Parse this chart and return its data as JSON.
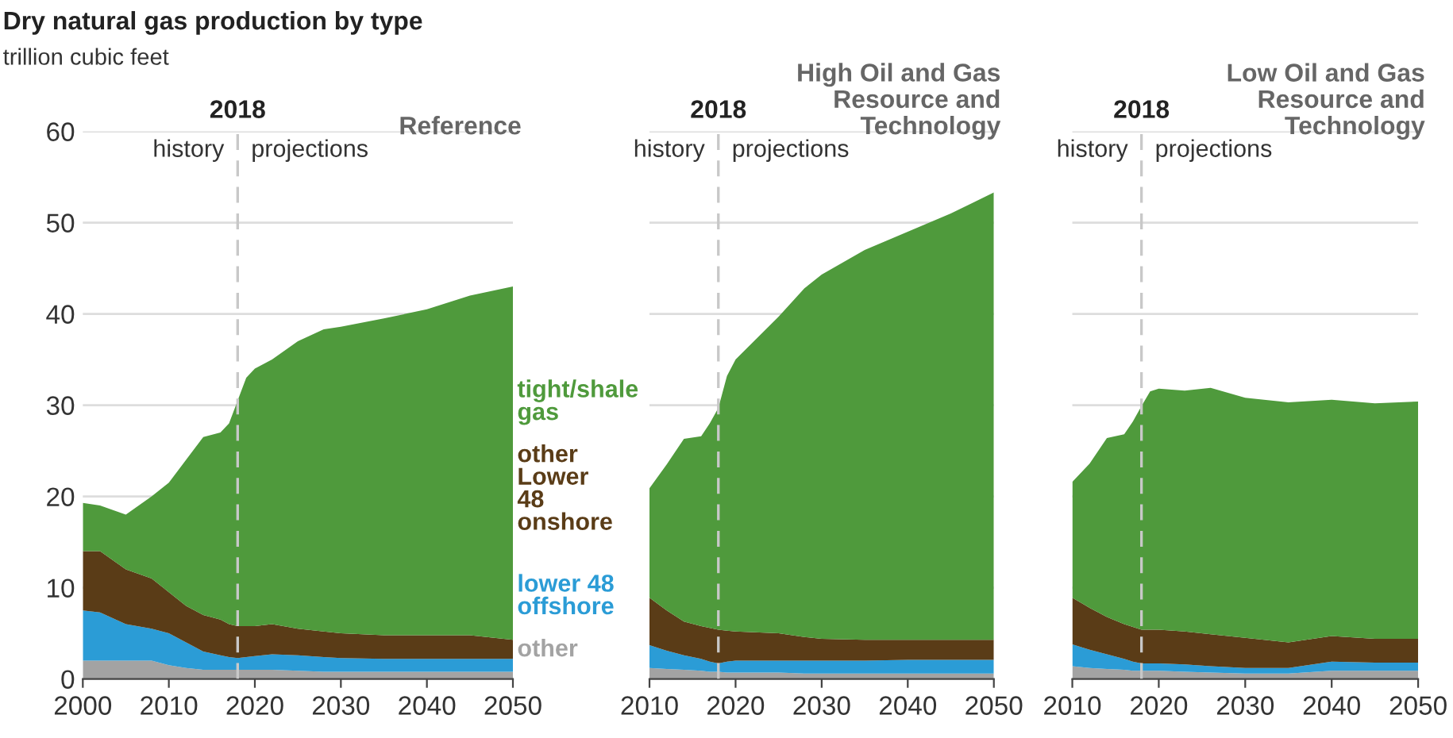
{
  "chart_data": [
    {
      "type": "area",
      "stacked": true,
      "title": "Dry natural gas production by type",
      "ylabel": "trillion cubic feet",
      "subtitle": "Reference",
      "x": [
        2000,
        2002,
        2005,
        2008,
        2010,
        2012,
        2014,
        2016,
        2017,
        2018,
        2019,
        2020,
        2022,
        2025,
        2028,
        2030,
        2035,
        2040,
        2045,
        2050
      ],
      "series": [
        {
          "name": "other",
          "color": "#a3a3a3",
          "values": [
            2.0,
            2.0,
            2.0,
            2.0,
            1.5,
            1.2,
            1.0,
            1.0,
            1.0,
            1.0,
            1.0,
            1.0,
            1.0,
            0.9,
            0.8,
            0.8,
            0.8,
            0.8,
            0.8,
            0.8
          ]
        },
        {
          "name": "lower 48\noffshore",
          "color": "#2b9cd6",
          "values": [
            5.5,
            5.3,
            4.0,
            3.5,
            3.5,
            2.8,
            2.0,
            1.6,
            1.4,
            1.3,
            1.4,
            1.5,
            1.7,
            1.7,
            1.6,
            1.5,
            1.4,
            1.4,
            1.4,
            1.4
          ]
        },
        {
          "name": "other\nLower\n48\nonshore",
          "color": "#5a3c17",
          "values": [
            6.5,
            6.7,
            6.0,
            5.5,
            4.5,
            4.0,
            4.0,
            3.9,
            3.6,
            3.5,
            3.4,
            3.3,
            3.3,
            2.9,
            2.8,
            2.7,
            2.6,
            2.6,
            2.6,
            2.1
          ]
        },
        {
          "name": "tight/shale\ngas",
          "color": "#4f9a3c",
          "values": [
            5.3,
            5.0,
            6.0,
            9.0,
            12.0,
            16.0,
            19.5,
            20.5,
            22.0,
            24.7,
            27.2,
            28.2,
            29.0,
            31.5,
            33.1,
            33.6,
            34.7,
            35.7,
            37.2,
            38.7
          ]
        }
      ],
      "xlim": [
        2000,
        2050
      ],
      "xticks": [
        2000,
        2010,
        2020,
        2030,
        2040,
        2050
      ],
      "ylim": [
        0,
        60
      ],
      "yticks": [
        0,
        10,
        20,
        30,
        40,
        50,
        60
      ],
      "grid": "y",
      "ref_lines": [
        {
          "axis": "x",
          "value": 2018,
          "label": "2018",
          "color": "#c8c8c8",
          "line_style": "dashed"
        }
      ],
      "annotations": [
        "history",
        "projections"
      ]
    },
    {
      "type": "area",
      "stacked": true,
      "subtitle": "High Oil and Gas\nResource and\nTechnology",
      "x": [
        2010,
        2012,
        2014,
        2016,
        2017,
        2018,
        2019,
        2020,
        2025,
        2028,
        2030,
        2035,
        2040,
        2045,
        2050
      ],
      "series": [
        {
          "color": "#a3a3a3",
          "values": [
            1.2,
            1.1,
            1.0,
            0.9,
            0.8,
            0.8,
            0.7,
            0.7,
            0.7,
            0.6,
            0.6,
            0.6,
            0.6,
            0.6,
            0.6
          ]
        },
        {
          "color": "#2b9cd6",
          "values": [
            2.5,
            2.0,
            1.6,
            1.3,
            1.1,
            0.9,
            1.2,
            1.3,
            1.3,
            1.4,
            1.4,
            1.4,
            1.5,
            1.5,
            1.5
          ]
        },
        {
          "color": "#5a3c17",
          "values": [
            5.2,
            4.4,
            3.7,
            3.6,
            3.7,
            3.7,
            3.4,
            3.2,
            3.0,
            2.6,
            2.4,
            2.3,
            2.2,
            2.2,
            2.2
          ]
        },
        {
          "color": "#4f9a3c",
          "values": [
            12.0,
            16.0,
            20.0,
            20.8,
            22.4,
            24.3,
            27.9,
            29.8,
            34.7,
            38.2,
            39.9,
            42.7,
            44.7,
            46.7,
            49.0
          ]
        }
      ],
      "xlim": [
        2010,
        2050
      ],
      "xticks": [
        2010,
        2020,
        2030,
        2040,
        2050
      ],
      "ylim": [
        0,
        60
      ],
      "yticks": [
        0,
        10,
        20,
        30,
        40,
        50,
        60
      ],
      "grid": "y",
      "tick_labels": "x",
      "ref_lines": [
        {
          "axis": "x",
          "value": 2018,
          "label": "2018",
          "color": "#c8c8c8",
          "line_style": "dashed"
        }
      ],
      "annotations": [
        "history",
        "projections"
      ]
    },
    {
      "type": "area",
      "stacked": true,
      "subtitle": "Low Oil and Gas\nResource and\nTechnology",
      "x": [
        2010,
        2012,
        2014,
        2016,
        2017,
        2018,
        2019,
        2020,
        2023,
        2026,
        2030,
        2035,
        2040,
        2045,
        2050
      ],
      "series": [
        {
          "color": "#a3a3a3",
          "values": [
            1.4,
            1.2,
            1.1,
            1.0,
            0.9,
            0.9,
            0.9,
            0.9,
            0.8,
            0.7,
            0.6,
            0.6,
            0.9,
            0.9,
            0.9
          ]
        },
        {
          "color": "#2b9cd6",
          "values": [
            2.4,
            2.0,
            1.6,
            1.2,
            1.0,
            0.8,
            0.8,
            0.8,
            0.8,
            0.7,
            0.6,
            0.6,
            1.0,
            0.9,
            0.9
          ]
        },
        {
          "color": "#5a3c17",
          "values": [
            5.1,
            4.6,
            4.1,
            3.8,
            3.8,
            3.7,
            3.7,
            3.7,
            3.6,
            3.5,
            3.3,
            2.8,
            2.8,
            2.6,
            2.6
          ]
        },
        {
          "color": "#4f9a3c",
          "values": [
            12.7,
            15.8,
            19.6,
            20.8,
            22.5,
            24.5,
            26.1,
            26.4,
            26.4,
            27.0,
            26.3,
            26.3,
            25.9,
            25.8,
            26.0
          ]
        }
      ],
      "xlim": [
        2010,
        2050
      ],
      "xticks": [
        2010,
        2020,
        2030,
        2040,
        2050
      ],
      "ylim": [
        0,
        60
      ],
      "yticks": [
        0,
        10,
        20,
        30,
        40,
        50,
        60
      ],
      "grid": "y",
      "tick_labels": "x",
      "ref_lines": [
        {
          "axis": "x",
          "value": 2018,
          "label": "2018",
          "color": "#c8c8c8",
          "line_style": "dashed"
        }
      ],
      "annotations": [
        "history",
        "projections"
      ]
    }
  ]
}
